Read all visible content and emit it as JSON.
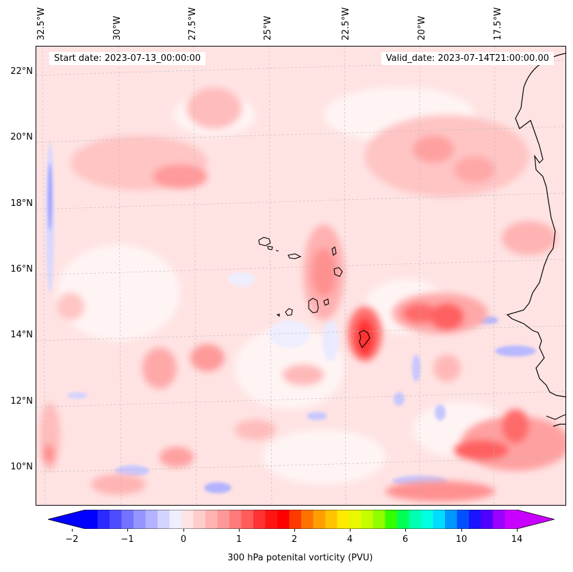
{
  "map": {
    "start_date": "Start date: 2023-07-13_00:00:00",
    "valid_date": "Valid_date: 2023-07-14T21:00:00.00",
    "lon_labels": [
      "32.5°W",
      "30°W",
      "27.5°W",
      "25°W",
      "22.5°W",
      "20°W",
      "17.5°W"
    ],
    "lat_labels": [
      "22°N",
      "20°N",
      "18°N",
      "16°N",
      "14°N",
      "12°N",
      "10°N"
    ],
    "field": "300 hPa potential vorticity",
    "units": "PVU"
  },
  "colorbar": {
    "label": "300 hPa potenital vorticity (PVU)",
    "ticks": [
      "−2",
      "−1",
      "0",
      "1",
      "2",
      "4",
      "6",
      "10",
      "14"
    ],
    "colors": [
      "#0000ff",
      "#2a2aff",
      "#4d4dff",
      "#7373ff",
      "#9595ff",
      "#b3b3ff",
      "#d3d3ff",
      "#eeeeff",
      "#ffe3e3",
      "#ffcccc",
      "#ffb3b3",
      "#ff9999",
      "#ff7a7a",
      "#ff5c5c",
      "#ff3333",
      "#ff1414",
      "#ff0000",
      "#ff3a00",
      "#ff7200",
      "#ff9e00",
      "#ffc400",
      "#ffeb00",
      "#e9f700",
      "#c4ff00",
      "#8fff00",
      "#33ff00",
      "#00ff55",
      "#00ffb0",
      "#00ffe0",
      "#00dcff",
      "#0096ff",
      "#0050ff",
      "#1a14ff",
      "#5000ff",
      "#9a00ff",
      "#c800ff"
    ],
    "under_color": "#0000ff",
    "over_color": "#c800ff"
  }
}
